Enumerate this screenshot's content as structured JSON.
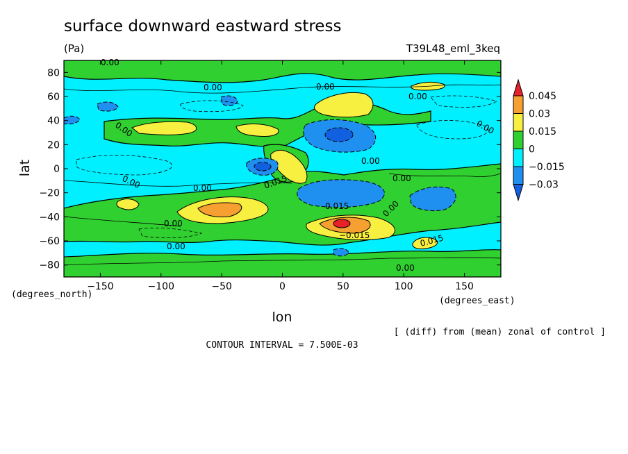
{
  "chart_data": {
    "type": "heatmap",
    "title": "surface downward eastward stress",
    "units": "(Pa)",
    "experiment": "T39L48_eml_3keq",
    "xlabel": "lon",
    "ylabel": "lat",
    "x_units": "(degrees_east)",
    "y_units": "(degrees_north)",
    "xlim": [
      -180,
      180
    ],
    "ylim": [
      -90,
      90
    ],
    "x_ticks": [
      -150,
      -100,
      -50,
      0,
      50,
      100,
      150
    ],
    "y_ticks": [
      80,
      60,
      40,
      20,
      0,
      -20,
      -40,
      -60,
      -80
    ],
    "colorbar": {
      "levels": [
        "0.045",
        "0.03",
        "0.015",
        "0",
        "−0.015",
        "−0.03"
      ],
      "colors": [
        "#e8202a",
        "#f5a030",
        "#f8f040",
        "#30d030",
        "#00f0ff",
        "#2090f0",
        "#1060e0"
      ]
    },
    "contour_labels": [
      "0.00",
      "0.015",
      "−0.015"
    ],
    "features": [
      {
        "lon": 47,
        "lat": -44,
        "value": 0.045
      },
      {
        "lon": -50,
        "lat": -36,
        "value": 0.03
      },
      {
        "lon": 45,
        "lat": -42,
        "value": 0.03
      },
      {
        "lon": 5,
        "lat": 5,
        "value": 0.015
      },
      {
        "lon": 60,
        "lat": 50,
        "value": 0.015
      },
      {
        "lon": -100,
        "lat": 34,
        "value": 0.015
      },
      {
        "lon": 130,
        "lat": -58,
        "value": 0.015
      },
      {
        "lon": 55,
        "lat": 27,
        "value": -0.03
      },
      {
        "lon": -12,
        "lat": 0,
        "value": -0.03
      },
      {
        "lon": 50,
        "lat": -23,
        "value": -0.015
      },
      {
        "lon": 120,
        "lat": -30,
        "value": -0.015
      }
    ],
    "annotation": "[ (diff) from (mean) zonal of control ]",
    "contour_interval": "CONTOUR INTERVAL = 7.500E-03"
  }
}
